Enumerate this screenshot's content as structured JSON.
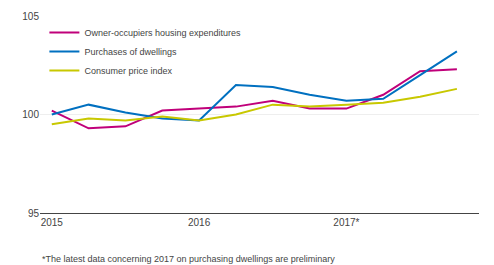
{
  "chart_data": {
    "type": "line",
    "x": [
      2015.0,
      2015.25,
      2015.5,
      2015.75,
      2016.0,
      2016.25,
      2016.5,
      2016.75,
      2017.0,
      2017.25,
      2017.5,
      2017.75
    ],
    "series": [
      {
        "name": "Owner-occupiers housing expenditures",
        "color": "#c0007a",
        "values": [
          100.2,
          99.3,
          99.4,
          100.2,
          100.3,
          100.4,
          100.7,
          100.3,
          100.3,
          101.0,
          102.2,
          102.3
        ]
      },
      {
        "name": "Purchases of dwellings",
        "color": "#0070c0",
        "values": [
          100.0,
          100.5,
          100.1,
          99.8,
          99.7,
          101.5,
          101.4,
          101.0,
          100.7,
          100.8,
          102.0,
          103.2
        ]
      },
      {
        "name": "Consumer price index",
        "color": "#c8c800",
        "values": [
          99.5,
          99.8,
          99.7,
          99.9,
          99.7,
          100.0,
          100.5,
          100.4,
          100.5,
          100.6,
          100.9,
          101.3
        ]
      }
    ],
    "xlim": [
      2014.92,
      2017.9
    ],
    "xticks": [
      2015,
      2016,
      {
        "value": 2017,
        "label": "2017*"
      }
    ],
    "ylim": [
      95,
      105
    ],
    "yticks": [
      95,
      100,
      105
    ],
    "grid": "y",
    "legend": "upper left",
    "annotations": [
      "*The latest data concerning 2017 on purchasing dwellings are preliminary"
    ]
  }
}
